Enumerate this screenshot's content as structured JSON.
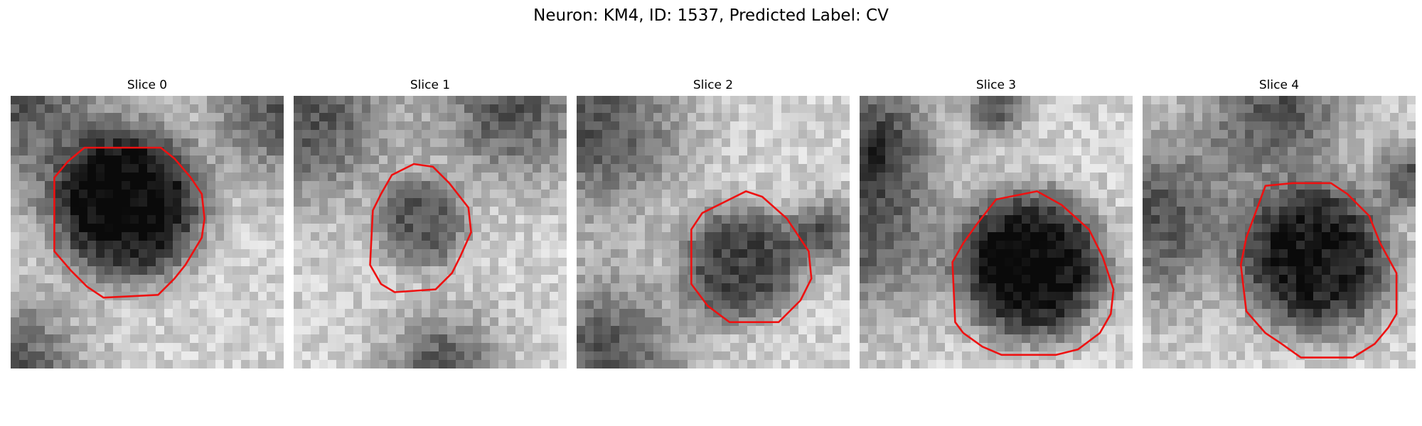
{
  "figure": {
    "title": "Neuron: KM4, ID: 1537, Predicted Label: CV"
  },
  "panels": [
    {
      "title": "Slice 0",
      "contour_color": "#ee1111",
      "blob_center": [
        0.43,
        0.4
      ],
      "blob_radius": 0.29,
      "darkness": 0.78,
      "seed": 11,
      "side_dark": [
        [
          0.0,
          0.0,
          0.35
        ],
        [
          1.0,
          0.05,
          0.25
        ],
        [
          0.0,
          1.0,
          0.25
        ]
      ],
      "contour": [
        [
          0.27,
          0.19
        ],
        [
          0.55,
          0.19
        ],
        [
          0.6,
          0.23
        ],
        [
          0.66,
          0.3
        ],
        [
          0.7,
          0.36
        ],
        [
          0.71,
          0.45
        ],
        [
          0.7,
          0.52
        ],
        [
          0.67,
          0.57
        ],
        [
          0.64,
          0.62
        ],
        [
          0.6,
          0.67
        ],
        [
          0.54,
          0.73
        ],
        [
          0.34,
          0.74
        ],
        [
          0.28,
          0.7
        ],
        [
          0.22,
          0.64
        ],
        [
          0.16,
          0.57
        ],
        [
          0.16,
          0.3
        ],
        [
          0.21,
          0.24
        ]
      ]
    },
    {
      "title": "Slice 1",
      "contour_color": "#ee1111",
      "blob_center": [
        0.47,
        0.47
      ],
      "blob_radius": 0.17,
      "darkness": 0.45,
      "seed": 23,
      "side_dark": [
        [
          0.05,
          0.08,
          0.3
        ],
        [
          0.8,
          0.05,
          0.25
        ],
        [
          0.55,
          1.0,
          0.2
        ]
      ],
      "contour": [
        [
          0.36,
          0.29
        ],
        [
          0.44,
          0.25
        ],
        [
          0.51,
          0.26
        ],
        [
          0.57,
          0.32
        ],
        [
          0.64,
          0.41
        ],
        [
          0.65,
          0.5
        ],
        [
          0.61,
          0.59
        ],
        [
          0.58,
          0.65
        ],
        [
          0.52,
          0.71
        ],
        [
          0.37,
          0.72
        ],
        [
          0.32,
          0.69
        ],
        [
          0.28,
          0.62
        ],
        [
          0.29,
          0.42
        ],
        [
          0.32,
          0.36
        ]
      ]
    },
    {
      "title": "Slice 2",
      "contour_color": "#ee1111",
      "blob_center": [
        0.6,
        0.62
      ],
      "blob_radius": 0.22,
      "darkness": 0.55,
      "seed": 37,
      "side_dark": [
        [
          0.08,
          0.12,
          0.3
        ],
        [
          0.1,
          0.95,
          0.28
        ],
        [
          0.9,
          0.5,
          0.12
        ]
      ],
      "contour": [
        [
          0.52,
          0.4
        ],
        [
          0.62,
          0.35
        ],
        [
          0.68,
          0.37
        ],
        [
          0.77,
          0.45
        ],
        [
          0.85,
          0.57
        ],
        [
          0.86,
          0.67
        ],
        [
          0.82,
          0.75
        ],
        [
          0.74,
          0.83
        ],
        [
          0.73,
          0.83
        ],
        [
          0.56,
          0.83
        ],
        [
          0.48,
          0.77
        ],
        [
          0.42,
          0.69
        ],
        [
          0.42,
          0.49
        ],
        [
          0.46,
          0.43
        ]
      ]
    },
    {
      "title": "Slice 3",
      "contour_color": "#ee1111",
      "blob_center": [
        0.63,
        0.62
      ],
      "blob_radius": 0.28,
      "darkness": 0.8,
      "seed": 49,
      "side_dark": [
        [
          0.0,
          0.5,
          0.3
        ],
        [
          0.05,
          0.15,
          0.2
        ],
        [
          0.5,
          0.05,
          0.1
        ]
      ],
      "contour": [
        [
          0.5,
          0.38
        ],
        [
          0.65,
          0.35
        ],
        [
          0.74,
          0.4
        ],
        [
          0.84,
          0.49
        ],
        [
          0.89,
          0.59
        ],
        [
          0.93,
          0.71
        ],
        [
          0.92,
          0.8
        ],
        [
          0.88,
          0.87
        ],
        [
          0.8,
          0.93
        ],
        [
          0.72,
          0.95
        ],
        [
          0.52,
          0.95
        ],
        [
          0.45,
          0.92
        ],
        [
          0.38,
          0.87
        ],
        [
          0.35,
          0.83
        ],
        [
          0.34,
          0.61
        ],
        [
          0.38,
          0.54
        ],
        [
          0.43,
          0.47
        ]
      ]
    },
    {
      "title": "Slice 4",
      "contour_color": "#ee1111",
      "blob_center": [
        0.64,
        0.6
      ],
      "blob_radius": 0.28,
      "darkness": 0.72,
      "seed": 61,
      "side_dark": [
        [
          0.05,
          0.45,
          0.3
        ],
        [
          0.5,
          0.05,
          0.25
        ],
        [
          0.98,
          0.3,
          0.12
        ]
      ],
      "contour": [
        [
          0.45,
          0.33
        ],
        [
          0.55,
          0.32
        ],
        [
          0.69,
          0.32
        ],
        [
          0.75,
          0.36
        ],
        [
          0.83,
          0.44
        ],
        [
          0.87,
          0.54
        ],
        [
          0.93,
          0.65
        ],
        [
          0.93,
          0.8
        ],
        [
          0.9,
          0.85
        ],
        [
          0.85,
          0.91
        ],
        [
          0.77,
          0.96
        ],
        [
          0.58,
          0.96
        ],
        [
          0.51,
          0.91
        ],
        [
          0.45,
          0.87
        ],
        [
          0.38,
          0.79
        ],
        [
          0.36,
          0.62
        ],
        [
          0.38,
          0.52
        ]
      ]
    }
  ]
}
